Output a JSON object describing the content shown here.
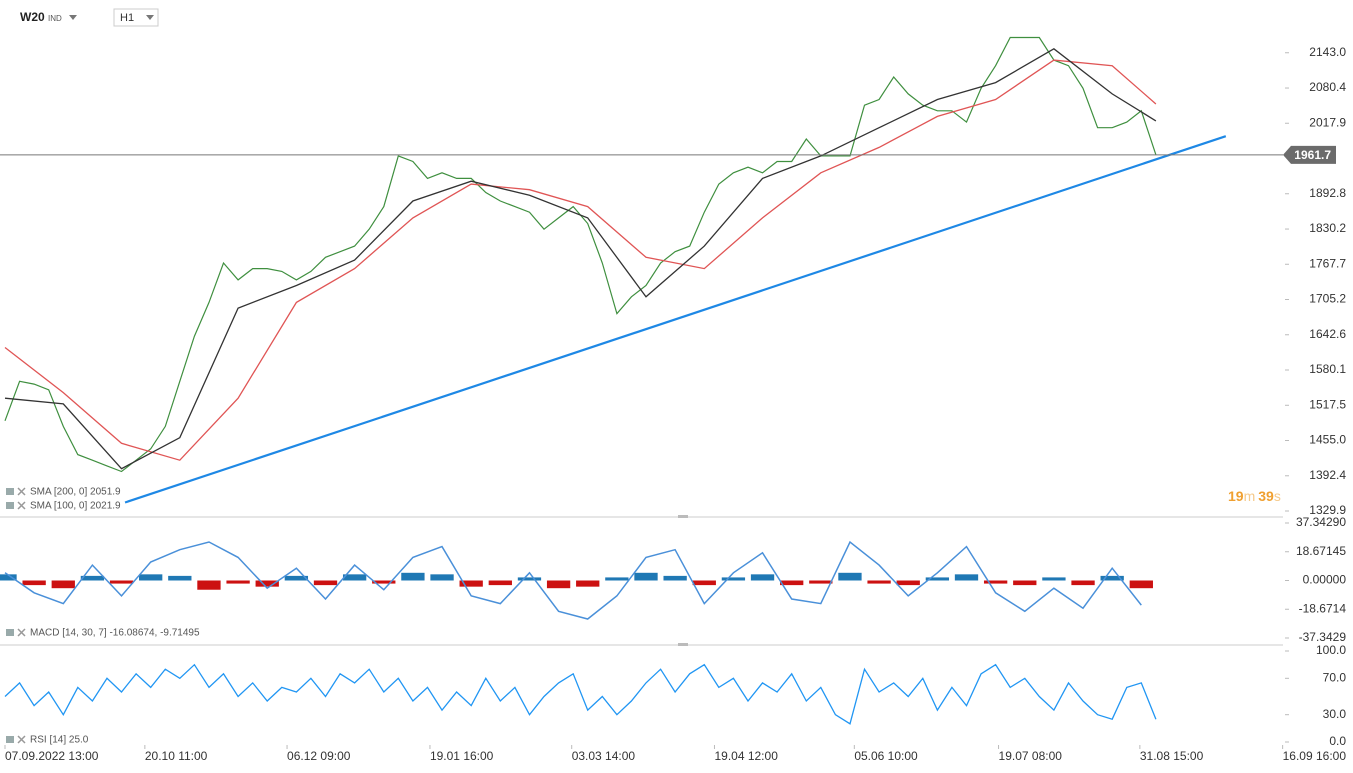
{
  "toolbar": {
    "symbol": "W20",
    "class": "IND",
    "timeframe": "H1"
  },
  "countdown": [
    "19",
    "m",
    "39",
    "s"
  ],
  "chart_data": [
    {
      "type": "line",
      "xlim": [
        0,
        88
      ],
      "ylim": [
        1322.8,
        2236.6
      ],
      "yticks": [
        {
          "value": 2143.0,
          "label": "2143.0"
        },
        {
          "value": 2080.4,
          "label": "2080.4"
        },
        {
          "value": 2017.9,
          "label": "2017.9"
        },
        {
          "value": 1892.8,
          "label": "1892.8"
        },
        {
          "value": 1830.2,
          "label": "1830.2"
        },
        {
          "value": 1767.7,
          "label": "1767.7"
        },
        {
          "value": 1705.2,
          "label": "1705.2"
        },
        {
          "value": 1642.6,
          "label": "1642.6"
        },
        {
          "value": 1580.1,
          "label": "1580.1"
        },
        {
          "value": 1517.5,
          "label": "1517.5"
        },
        {
          "value": 1455.0,
          "label": "1455.0"
        },
        {
          "value": 1392.4,
          "label": "1392.4"
        },
        {
          "value": 1329.9,
          "label": "1329.9"
        }
      ],
      "last_price": 1961.7,
      "series": [
        {
          "color": "#3f8f3f",
          "x": [
            0,
            1,
            2,
            3,
            4,
            5,
            6,
            7,
            8,
            9,
            10,
            11,
            12,
            13,
            14,
            15,
            16,
            17,
            18,
            19,
            20,
            21,
            22,
            23,
            24,
            25,
            26,
            27,
            28,
            29,
            30,
            31,
            32,
            33,
            34,
            35,
            36,
            37,
            38,
            39,
            40,
            41,
            42,
            43,
            44,
            45,
            46,
            47,
            48,
            49,
            50,
            51,
            52,
            53,
            54,
            55,
            56,
            57,
            58,
            59,
            60,
            61,
            62,
            63,
            64,
            65,
            66,
            67,
            68,
            69,
            70,
            71,
            72,
            73,
            74,
            75,
            76,
            77,
            78,
            79
          ],
          "values": [
            1490,
            1560,
            1555,
            1545,
            1480,
            1430,
            1420,
            1410,
            1400,
            1420,
            1440,
            1480,
            1560,
            1640,
            1700,
            1770,
            1740,
            1760,
            1760,
            1755,
            1740,
            1755,
            1780,
            1790,
            1800,
            1830,
            1870,
            1960,
            1950,
            1920,
            1930,
            1920,
            1920,
            1895,
            1880,
            1870,
            1860,
            1830,
            1850,
            1870,
            1840,
            1770,
            1680,
            1710,
            1730,
            1770,
            1790,
            1800,
            1860,
            1910,
            1930,
            1940,
            1930,
            1950,
            1950,
            1990,
            1960,
            1960,
            1960,
            2050,
            2060,
            2100,
            2070,
            2050,
            2040,
            2040,
            2020,
            2080,
            2120,
            2170,
            2170,
            2170,
            2130,
            2120,
            2080,
            2010,
            2010,
            2020,
            2040,
            1962
          ]
        },
        {
          "name": "SMA [200, 0] 2051.9",
          "color": "#e05555",
          "x": [
            0,
            4,
            8,
            12,
            16,
            20,
            24,
            28,
            32,
            36,
            40,
            44,
            48,
            52,
            56,
            60,
            64,
            68,
            72,
            76,
            79
          ],
          "values": [
            1620,
            1540,
            1450,
            1420,
            1530,
            1700,
            1760,
            1850,
            1910,
            1900,
            1870,
            1780,
            1760,
            1850,
            1930,
            1975,
            2030,
            2060,
            2130,
            2120,
            2052
          ]
        },
        {
          "name": "SMA [100, 0] 2021.9",
          "color": "#333333",
          "x": [
            0,
            4,
            8,
            12,
            16,
            20,
            24,
            28,
            32,
            36,
            40,
            44,
            48,
            52,
            56,
            60,
            64,
            68,
            72,
            76,
            79
          ],
          "values": [
            1530,
            1520,
            1405,
            1460,
            1690,
            1730,
            1775,
            1880,
            1915,
            1890,
            1850,
            1710,
            1800,
            1920,
            1960,
            2010,
            2060,
            2090,
            2150,
            2070,
            2022
          ]
        }
      ],
      "trendline": {
        "color": "#1e88e5",
        "x": [
          8.24,
          83.8
        ],
        "values": [
          1345,
          1995
        ]
      }
    },
    {
      "type": "macd",
      "xlim": [
        0,
        88
      ],
      "ylim": [
        -41.9,
        39.3
      ],
      "yticks": [
        {
          "value": 37.3429,
          "label": "37.34290"
        },
        {
          "value": 18.67145,
          "label": "18.67145"
        },
        {
          "value": 0,
          "label": "0.00000"
        },
        {
          "value": -18.6714,
          "label": "-18.6714"
        },
        {
          "value": -37.3429,
          "label": "-37.3429"
        }
      ],
      "x": [
        0,
        2,
        4,
        6,
        8,
        10,
        12,
        14,
        16,
        18,
        20,
        22,
        24,
        26,
        28,
        30,
        32,
        34,
        36,
        38,
        40,
        42,
        44,
        46,
        48,
        50,
        52,
        54,
        56,
        58,
        60,
        62,
        64,
        66,
        68,
        70,
        72,
        74,
        76,
        78
      ],
      "histogram": {
        "positive_color": "#1f78b4",
        "negative_color": "#cc1111",
        "values": [
          4,
          -3,
          -5,
          3,
          -2,
          4,
          3,
          -6,
          -2,
          -4,
          3,
          -3,
          4,
          -2,
          5,
          4,
          -4,
          -3,
          2,
          -5,
          -4,
          2,
          5,
          3,
          -3,
          2,
          4,
          -3,
          -2,
          5,
          -2,
          -3,
          2,
          4,
          -2,
          -3,
          2,
          -3,
          3,
          -5
        ]
      },
      "series": [
        {
          "name": "MACD [14, 30, 7] -16.08674, -9.71495",
          "color": "#4a90d9",
          "values": [
            5,
            -8,
            -15,
            10,
            -10,
            12,
            20,
            25,
            15,
            -5,
            8,
            -12,
            10,
            -6,
            15,
            22,
            -10,
            -15,
            5,
            -20,
            -25,
            -10,
            15,
            20,
            -15,
            5,
            18,
            -12,
            -15,
            25,
            10,
            -10,
            5,
            22,
            -8,
            -20,
            -5,
            -18,
            8,
            -16
          ]
        }
      ]
    },
    {
      "type": "line",
      "xlim": [
        0,
        88
      ],
      "ylim": [
        -3.3,
        103.3
      ],
      "yticks": [
        {
          "value": 100,
          "label": "100.0"
        },
        {
          "value": 70,
          "label": "70.0"
        },
        {
          "value": 30,
          "label": "30.0"
        },
        {
          "value": 0,
          "label": "0.0"
        }
      ],
      "xticks": [
        {
          "value": 0,
          "label": "07.09.2022 13:00"
        },
        {
          "value": 9.6,
          "label": "20.10 11:00"
        },
        {
          "value": 19.36,
          "label": "06.12 09:00"
        },
        {
          "value": 29.17,
          "label": "19.01 16:00"
        },
        {
          "value": 38.9,
          "label": "03.03 14:00"
        },
        {
          "value": 48.7,
          "label": "19.04 12:00"
        },
        {
          "value": 58.3,
          "label": "05.06 10:00"
        },
        {
          "value": 68.2,
          "label": "19.07 08:00"
        },
        {
          "value": 77.9,
          "label": "31.08 15:00"
        },
        {
          "value": 87.7,
          "label": "16.09 16:00"
        }
      ],
      "series": [
        {
          "name": "RSI [14] 25.0",
          "color": "#2196f3",
          "x": [
            0,
            1,
            2,
            3,
            4,
            5,
            6,
            7,
            8,
            9,
            10,
            11,
            12,
            13,
            14,
            15,
            16,
            17,
            18,
            19,
            20,
            21,
            22,
            23,
            24,
            25,
            26,
            27,
            28,
            29,
            30,
            31,
            32,
            33,
            34,
            35,
            36,
            37,
            38,
            39,
            40,
            41,
            42,
            43,
            44,
            45,
            46,
            47,
            48,
            49,
            50,
            51,
            52,
            53,
            54,
            55,
            56,
            57,
            58,
            59,
            60,
            61,
            62,
            63,
            64,
            65,
            66,
            67,
            68,
            69,
            70,
            71,
            72,
            73,
            74,
            75,
            76,
            77,
            78,
            79
          ],
          "values": [
            50,
            65,
            40,
            55,
            30,
            60,
            45,
            70,
            55,
            75,
            60,
            80,
            70,
            85,
            60,
            75,
            50,
            65,
            45,
            60,
            55,
            70,
            50,
            75,
            65,
            80,
            55,
            70,
            45,
            60,
            35,
            55,
            40,
            70,
            45,
            60,
            30,
            50,
            65,
            75,
            35,
            50,
            30,
            45,
            65,
            80,
            55,
            75,
            85,
            60,
            70,
            45,
            65,
            55,
            75,
            45,
            60,
            30,
            20,
            80,
            55,
            65,
            50,
            70,
            35,
            60,
            40,
            75,
            85,
            60,
            70,
            50,
            35,
            65,
            45,
            30,
            25,
            60,
            65,
            25
          ]
        }
      ]
    }
  ]
}
